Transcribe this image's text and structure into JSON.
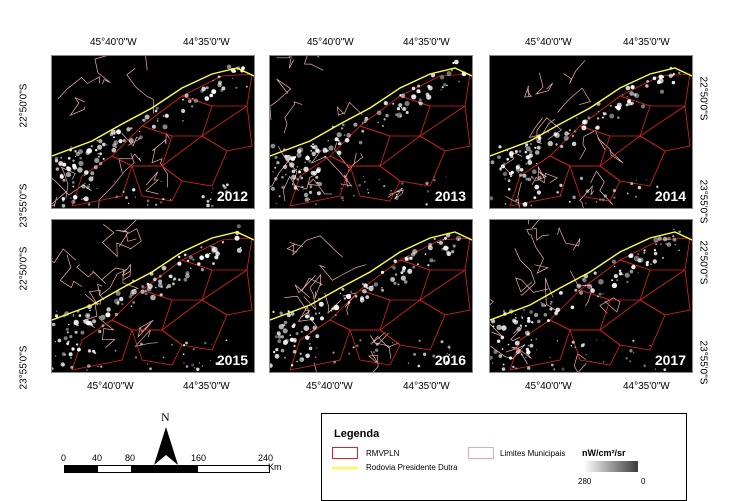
{
  "map": {
    "top_lon_labels": [
      "45°40'0\"W",
      "44°35'0\"W"
    ],
    "bottom_lon_labels": [
      "45°40'0\"W",
      "44°35'0\"W"
    ],
    "left_lat_labels": [
      "22°50'0\"S",
      "23°55'0\"S"
    ],
    "right_lat_labels": [
      "22°50'0\"S",
      "23°55'0\"S"
    ],
    "panels": [
      {
        "year": "2012"
      },
      {
        "year": "2013"
      },
      {
        "year": "2014"
      },
      {
        "year": "2015"
      },
      {
        "year": "2016"
      },
      {
        "year": "2017"
      }
    ]
  },
  "colors": {
    "background": "#000000",
    "region_boundary": "#dd2222",
    "municipal_boundary": "#f4b0b0",
    "highway": "#ffff44",
    "lights": "#ffffff"
  },
  "north_arrow": {
    "label": "N"
  },
  "scale_bar": {
    "labels": [
      "0",
      "40",
      "80",
      "160",
      "240"
    ],
    "unit": "Km"
  },
  "legend": {
    "title": "Legenda",
    "items": {
      "rmvpln": "RMVPLN",
      "highway": "Rodovia Presidente Dutra",
      "municipal": "Limites Municipais"
    },
    "ramp": {
      "title": "nW/cm²/sr",
      "max": "280",
      "min": "0"
    }
  }
}
